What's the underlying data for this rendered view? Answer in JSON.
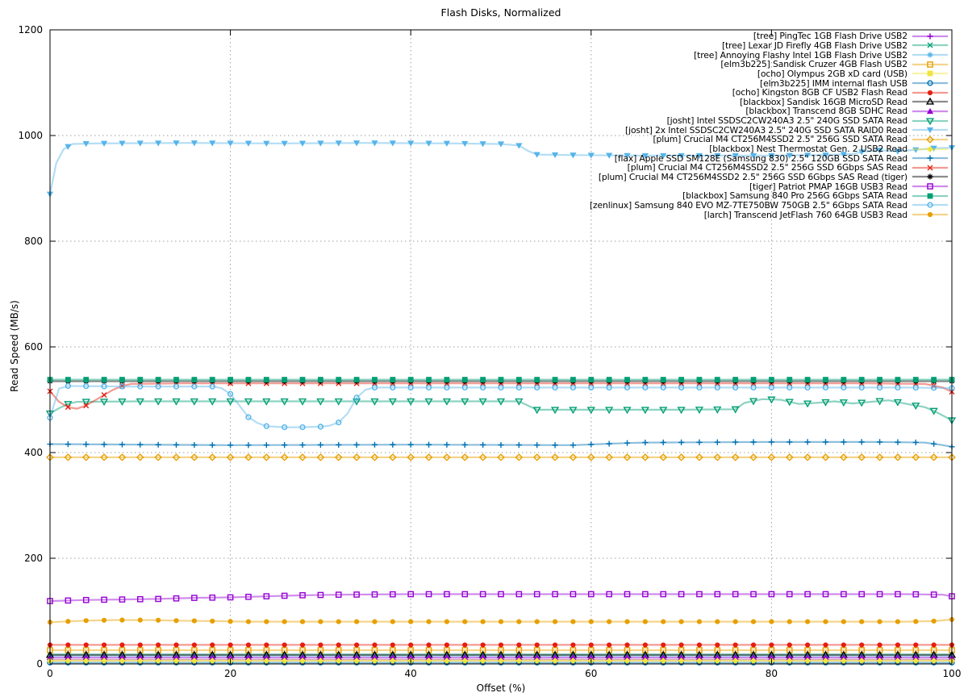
{
  "chart_data": {
    "type": "line",
    "title": "Flash Disks, Normalized",
    "xlabel": "Offset (%)",
    "ylabel": "Read Speed (MB/s)",
    "xlim": [
      0,
      100
    ],
    "ylim": [
      0,
      1200
    ],
    "xticks": [
      0,
      20,
      40,
      60,
      80,
      100
    ],
    "yticks": [
      0,
      200,
      400,
      600,
      800,
      1000,
      1200
    ],
    "grid": true,
    "legend_position": "top-right-inside",
    "marker_step": 2,
    "colors": {
      "purple": "#9400d3",
      "teal": "#009e73",
      "skyblue": "#56b4e9",
      "orange": "#e69f00",
      "yellow": "#f0e442",
      "blue": "#0072b2",
      "red": "#e51e10",
      "black": "#000000"
    },
    "series": [
      {
        "name": "[tree] PingTec 1GB Flash Drive USB2",
        "color": "#9400d3",
        "marker": "plus",
        "points": [
          [
            0,
            8
          ],
          [
            100,
            8
          ]
        ]
      },
      {
        "name": "[tree] Lexar JD Firefly 4GB Flash Drive USB2",
        "color": "#009e73",
        "marker": "x",
        "points": [
          [
            0,
            18
          ],
          [
            100,
            18
          ]
        ]
      },
      {
        "name": "[tree] Annoying Flashy Intel 1GB Flash Drive USB2",
        "color": "#56b4e9",
        "marker": "asterisk",
        "points": [
          [
            0,
            15
          ],
          [
            100,
            15
          ]
        ]
      },
      {
        "name": "[elm3b225] Sandisk Cruzer 4GB Flash USB2",
        "color": "#e69f00",
        "marker": "square-open",
        "points": [
          [
            0,
            26
          ],
          [
            100,
            26
          ]
        ]
      },
      {
        "name": "[ocho] Olympus 2GB xD card (USB)",
        "color": "#f0e442",
        "marker": "square-filled",
        "points": [
          [
            0,
            7
          ],
          [
            100,
            7
          ]
        ]
      },
      {
        "name": "[elm3b225] IMM internal flash USB",
        "color": "#0072b2",
        "marker": "circle-open",
        "points": [
          [
            0,
            2.5
          ],
          [
            100,
            2.5
          ]
        ]
      },
      {
        "name": "[ocho] Kingston 8GB CF USB2 Flash Read",
        "color": "#e51e10",
        "marker": "circle-filled",
        "points": [
          [
            0,
            36
          ],
          [
            100,
            36
          ]
        ]
      },
      {
        "name": "[blackbox] Sandisk 16GB MicroSD Read",
        "color": "#000000",
        "marker": "triangle-up-open",
        "points": [
          [
            0,
            17
          ],
          [
            100,
            17
          ]
        ]
      },
      {
        "name": "[blackbox] Transcend 8GB SDHC Read",
        "color": "#9400d3",
        "marker": "triangle-up-filled",
        "points": [
          [
            0,
            12
          ],
          [
            100,
            12
          ]
        ]
      },
      {
        "name": "[josht] Intel SSDSC2CW240A3 2.5\" 240G SSD SATA Read",
        "color": "#009e73",
        "marker": "triangle-down-open",
        "points": [
          [
            0,
            474
          ],
          [
            1,
            484
          ],
          [
            2,
            492
          ],
          [
            3,
            496
          ],
          [
            10,
            497
          ],
          [
            30,
            497
          ],
          [
            52,
            497
          ],
          [
            53,
            489
          ],
          [
            54,
            481
          ],
          [
            60,
            481
          ],
          [
            70,
            481
          ],
          [
            76,
            482
          ],
          [
            77,
            494
          ],
          [
            79,
            501
          ],
          [
            81,
            500
          ],
          [
            83,
            492
          ],
          [
            85,
            494
          ],
          [
            87,
            497
          ],
          [
            89,
            493
          ],
          [
            91,
            496
          ],
          [
            93,
            499
          ],
          [
            95,
            492
          ],
          [
            97,
            486
          ],
          [
            98,
            479
          ],
          [
            99,
            470
          ],
          [
            100,
            461
          ]
        ]
      },
      {
        "name": "[josht] 2x Intel SSDSC2CW240A3 2.5\" 240G SSD SATA RAID0 Read",
        "color": "#56b4e9",
        "marker": "triangle-down-filled",
        "points": [
          [
            0,
            889
          ],
          [
            0.7,
            948
          ],
          [
            1.5,
            974
          ],
          [
            2.5,
            984
          ],
          [
            5,
            985
          ],
          [
            15,
            986
          ],
          [
            25,
            985
          ],
          [
            35,
            986
          ],
          [
            45,
            985
          ],
          [
            50,
            984
          ],
          [
            52,
            981
          ],
          [
            53,
            971
          ],
          [
            54,
            964
          ],
          [
            58,
            963
          ],
          [
            65,
            962
          ],
          [
            72,
            962
          ],
          [
            80,
            962
          ],
          [
            86,
            963
          ],
          [
            89,
            965
          ],
          [
            90,
            969
          ],
          [
            92,
            972
          ],
          [
            94,
            970
          ],
          [
            96,
            973
          ],
          [
            98,
            976
          ],
          [
            100,
            977
          ]
        ]
      },
      {
        "name": "[plum] Crucial M4 CT256M4SSD2 2.5\" 256G SSD SATA Read",
        "color": "#e69f00",
        "marker": "diamond-open",
        "points": [
          [
            0,
            391
          ],
          [
            100,
            391
          ]
        ]
      },
      {
        "name": "[blackbox] Nest Thermostat Gen. 2 USB2 Read",
        "color": "#f0e442",
        "marker": "diamond-filled",
        "points": [
          [
            0,
            6
          ],
          [
            100,
            6
          ]
        ]
      },
      {
        "name": "[flax] Apple SSD SM128E (Samsung 830) 2.5\" 120GB SSD SATA Read",
        "color": "#0072b2",
        "marker": "plus",
        "points": [
          [
            0,
            416
          ],
          [
            20,
            414
          ],
          [
            40,
            415
          ],
          [
            58,
            414
          ],
          [
            61,
            416
          ],
          [
            64,
            418
          ],
          [
            66,
            419
          ],
          [
            80,
            420
          ],
          [
            92,
            420
          ],
          [
            97,
            419
          ],
          [
            99,
            414
          ],
          [
            100,
            411
          ]
        ]
      },
      {
        "name": "[plum] Crucial M4 CT256M4SSD2 2.5\" 256G SSD 6Gbps SAS Read",
        "color": "#e51e10",
        "marker": "x",
        "points": [
          [
            0,
            516
          ],
          [
            1,
            496
          ],
          [
            2,
            486
          ],
          [
            3,
            483
          ],
          [
            4,
            489
          ],
          [
            5,
            499
          ],
          [
            6,
            509
          ],
          [
            7,
            519
          ],
          [
            8,
            526
          ],
          [
            9,
            530
          ],
          [
            15,
            531
          ],
          [
            40,
            531
          ],
          [
            70,
            531
          ],
          [
            90,
            531
          ],
          [
            97,
            530
          ],
          [
            99,
            523
          ],
          [
            100,
            515
          ]
        ]
      },
      {
        "name": "[plum] Crucial M4 CT256M4SSD2 2.5\" 256G SSD 6Gbps SAS Read (tiger)",
        "color": "#000000",
        "marker": "asterisk",
        "points": [
          [
            0,
            535
          ],
          [
            100,
            535
          ]
        ]
      },
      {
        "name": "[tiger] Patriot PMAP 16GB USB3 Read",
        "color": "#9400d3",
        "marker": "square-open",
        "points": [
          [
            0,
            119
          ],
          [
            4,
            121
          ],
          [
            8,
            122
          ],
          [
            12,
            123
          ],
          [
            16,
            125
          ],
          [
            20,
            126
          ],
          [
            24,
            128
          ],
          [
            28,
            130
          ],
          [
            32,
            131
          ],
          [
            40,
            132
          ],
          [
            60,
            132
          ],
          [
            80,
            132
          ],
          [
            95,
            132
          ],
          [
            99,
            131
          ],
          [
            100,
            128
          ]
        ]
      },
      {
        "name": "[blackbox] Samsung 840 Pro 256G 6Gbps SATA Read",
        "color": "#009e73",
        "marker": "square-filled",
        "points": [
          [
            0,
            538
          ],
          [
            100,
            538
          ]
        ]
      },
      {
        "name": "[zenlinux] Samsung 840 EVO MZ-7TE750BW 750GB 2.5\" 6Gbps SATA Read",
        "color": "#56b4e9",
        "marker": "circle-open",
        "points": [
          [
            0,
            466
          ],
          [
            1,
            521
          ],
          [
            2,
            526
          ],
          [
            8,
            525
          ],
          [
            14,
            525
          ],
          [
            18,
            525
          ],
          [
            19,
            522
          ],
          [
            20,
            511
          ],
          [
            21,
            489
          ],
          [
            22,
            467
          ],
          [
            23,
            456
          ],
          [
            24,
            450
          ],
          [
            26,
            448
          ],
          [
            28,
            448
          ],
          [
            30,
            449
          ],
          [
            31,
            451
          ],
          [
            32,
            457
          ],
          [
            33,
            474
          ],
          [
            34,
            504
          ],
          [
            35,
            519
          ],
          [
            36,
            523
          ],
          [
            45,
            523
          ],
          [
            60,
            523
          ],
          [
            80,
            523
          ],
          [
            95,
            523
          ],
          [
            100,
            522
          ]
        ]
      },
      {
        "name": "[larch] Transcend JetFlash 760 64GB USB3 Read",
        "color": "#e69f00",
        "marker": "circle-filled",
        "points": [
          [
            0,
            79
          ],
          [
            4,
            82
          ],
          [
            7,
            83
          ],
          [
            11,
            83
          ],
          [
            14,
            82
          ],
          [
            18,
            81
          ],
          [
            22,
            80
          ],
          [
            40,
            80
          ],
          [
            60,
            80
          ],
          [
            80,
            80
          ],
          [
            95,
            80
          ],
          [
            98,
            81
          ],
          [
            100,
            84
          ]
        ]
      }
    ]
  }
}
